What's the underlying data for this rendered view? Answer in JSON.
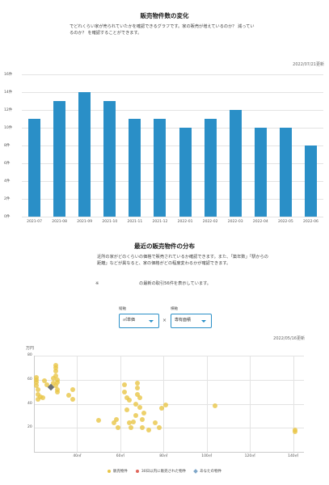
{
  "section1": {
    "title": "販売物件数の変化",
    "description": "でどれくらい家が売られていたかを確認できるグラフです。家の販売が増えているのか？ 減っているのか？ を確認することができます。",
    "updated": "2022/07/21更新"
  },
  "bar_chart": {
    "y_ticks": [
      "16件",
      "14件",
      "12件",
      "10件",
      "8件",
      "6件",
      "4件",
      "2件",
      "0件"
    ]
  },
  "section2": {
    "title": "最近の販売物件の分布",
    "description": "近所の家がどのくらいの価格で販売されているか確認できます。また、「築年数」「駅からの距離」などが異なると、家の価格がどの程度変わるかが確認できます。",
    "note_prefix": "※",
    "note": "の最新の取引56件を表示しています。",
    "updated": "2022/05/16更新"
  },
  "controls": {
    "y_axis_label": "縦軸",
    "y_axis_value": "㎡単価",
    "x_axis_label": "横軸",
    "x_axis_value": "専有面積",
    "times": "×"
  },
  "scatter": {
    "unit": "万円",
    "y_ticks": [
      "80",
      "60",
      "40",
      "20"
    ],
    "x_ticks": [
      "40㎡",
      "60㎡",
      "80㎡",
      "100㎡",
      "120㎡",
      "140㎡"
    ]
  },
  "legend": {
    "for_sale": "販売物件",
    "sold_30": "30日以内に販売された物件",
    "yours": "あなたの物件"
  },
  "colors": {
    "bar": "#2a8fc7",
    "for_sale": "#e8c547",
    "sold_30": "#e0665b",
    "yours": "#7fa7c9"
  },
  "chart_data": [
    {
      "type": "bar",
      "categories": [
        "2021-07",
        "2021-08",
        "2021-09",
        "2021-10",
        "2021-11",
        "2021-12",
        "2022-01",
        "2022-02",
        "2022-03",
        "2022-04",
        "2022-05",
        "2022-06"
      ],
      "values": [
        11,
        13,
        14,
        13,
        11,
        11,
        10,
        11,
        12,
        10,
        10,
        8
      ],
      "ylim": [
        0,
        16
      ]
    },
    {
      "type": "scatter",
      "xlim": [
        20,
        145
      ],
      "ylim": [
        0,
        80
      ],
      "series": [
        {
          "name": "販売物件",
          "points": [
            [
              21,
              62
            ],
            [
              21,
              60
            ],
            [
              21,
              58
            ],
            [
              21,
              55
            ],
            [
              22,
              52
            ],
            [
              22,
              48
            ],
            [
              23,
              46
            ],
            [
              22,
              44
            ],
            [
              24,
              45
            ],
            [
              25,
              59
            ],
            [
              26,
              56
            ],
            [
              29,
              57
            ],
            [
              29,
              61
            ],
            [
              30,
              72
            ],
            [
              30,
              70
            ],
            [
              30,
              67
            ],
            [
              30,
              63
            ],
            [
              31,
              60
            ],
            [
              31,
              58
            ],
            [
              30,
              55
            ],
            [
              31,
              52
            ],
            [
              31,
              50
            ],
            [
              36,
              47
            ],
            [
              38,
              44
            ],
            [
              38,
              52
            ],
            [
              50,
              26
            ],
            [
              57,
              24
            ],
            [
              58,
              27
            ],
            [
              59,
              20
            ],
            [
              62,
              56
            ],
            [
              62,
              50
            ],
            [
              63,
              45
            ],
            [
              64,
              43
            ],
            [
              63,
              35
            ],
            [
              64,
              24
            ],
            [
              65,
              20
            ],
            [
              66,
              25
            ],
            [
              67,
              40
            ],
            [
              67,
              30
            ],
            [
              68,
              57
            ],
            [
              68,
              53
            ],
            [
              68,
              48
            ],
            [
              69,
              45
            ],
            [
              69,
              37
            ],
            [
              70,
              27
            ],
            [
              70,
              20
            ],
            [
              71,
              32
            ],
            [
              73,
              18
            ],
            [
              76,
              24
            ],
            [
              78,
              20
            ],
            [
              79,
              36
            ],
            [
              81,
              39
            ],
            [
              104,
              38
            ],
            [
              141,
              18
            ],
            [
              141,
              17
            ]
          ]
        },
        {
          "name": "あなたの物件",
          "points": [
            [
              28,
              54
            ]
          ]
        }
      ]
    }
  ]
}
